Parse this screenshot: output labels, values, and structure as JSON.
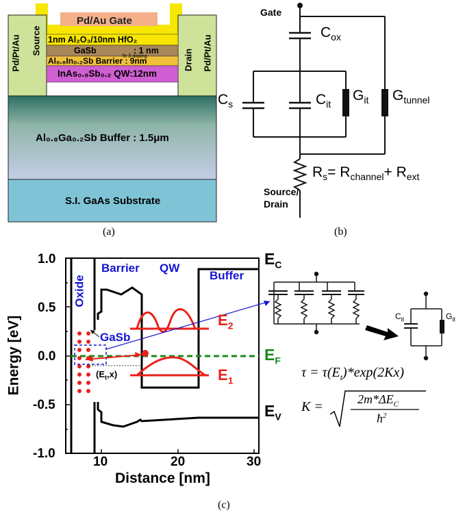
{
  "panel_a": {
    "caption": "(a)",
    "gate": "Pd/Au Gate",
    "source_left": "Pd/Pt/Au",
    "source_right": "Source",
    "drain_left": "Drain",
    "drain_right": "Pd/Pt/Au",
    "oxide_layer": "1nm Al₂O₃/10nm HfO₂",
    "gasb_layer": "GaSb",
    "gasb_thickness": ": 1 nm",
    "barrier_layer": "Al₀.₈In₀.₂Sb Barrier : 9nm",
    "delta_doping": "Te δ-doping",
    "qw_layer": "InAs₀.₈Sb₀.₂ QW:12nm",
    "buffer_layer": "Al₀.₈Ga₀.₂Sb Buffer : 1.5μm",
    "substrate_layer": "S.I. GaAs Substrate"
  },
  "panel_b": {
    "caption": "(b)",
    "gate": "Gate",
    "cox": "C",
    "cox_sub": "ox",
    "cs": "C",
    "cs_sub": "s",
    "cit": "C",
    "cit_sub": "it",
    "git": "G",
    "git_sub": "it",
    "gtunnel": "G",
    "gtunnel_sub": "tunnel",
    "rs_eq": "R",
    "rs_sub": "s",
    "rs_eq_mid": "= R",
    "rch_sub": "channel",
    "rs_plus": "+ R",
    "rext_sub": "ext",
    "source_drain_1": "Source/",
    "source_drain_2": "Drain"
  },
  "panel_c": {
    "caption": "(c)",
    "ylabel": "Energy [eV]",
    "xlabel": "Distance [nm]",
    "x_ticks": [
      "10",
      "20",
      "30"
    ],
    "y_ticks": [
      "1.0",
      "0.5",
      "0.0",
      "-0.5",
      "-1.0"
    ],
    "x_range": [
      5,
      30
    ],
    "y_range": [
      -1.0,
      1.0
    ],
    "oxide": "Oxide",
    "barrier": "Barrier",
    "qw": "QW",
    "buffer": "Buffer",
    "gasb": "GaSb",
    "ec": "E",
    "ec_sub": "C",
    "ef": "E",
    "ef_sub": "F",
    "ev": "E",
    "ev_sub": "V",
    "e1": "E",
    "e1_sub": "1",
    "e2": "E",
    "e2_sub": "2",
    "et_x": "(E",
    "et_x_sub": "t",
    "et_x_end": ",x)",
    "tau_eq": "τ = τ(E",
    "tau_eq_sub": "t",
    "tau_eq_end": ")*exp(2Kx)",
    "k_eq_left": "K =",
    "k_num": "2m*ΔE",
    "k_num_sub": "C",
    "k_den": "ħ",
    "k_den_sup": "2",
    "small_cit": "C",
    "small_cit_sub": "it",
    "small_git": "G",
    "small_git_sub": "it",
    "colors": {
      "band": "#000000",
      "fermi": "#1a8a1a",
      "wave": "#e8211a",
      "label_blue": "#1414d2"
    }
  }
}
